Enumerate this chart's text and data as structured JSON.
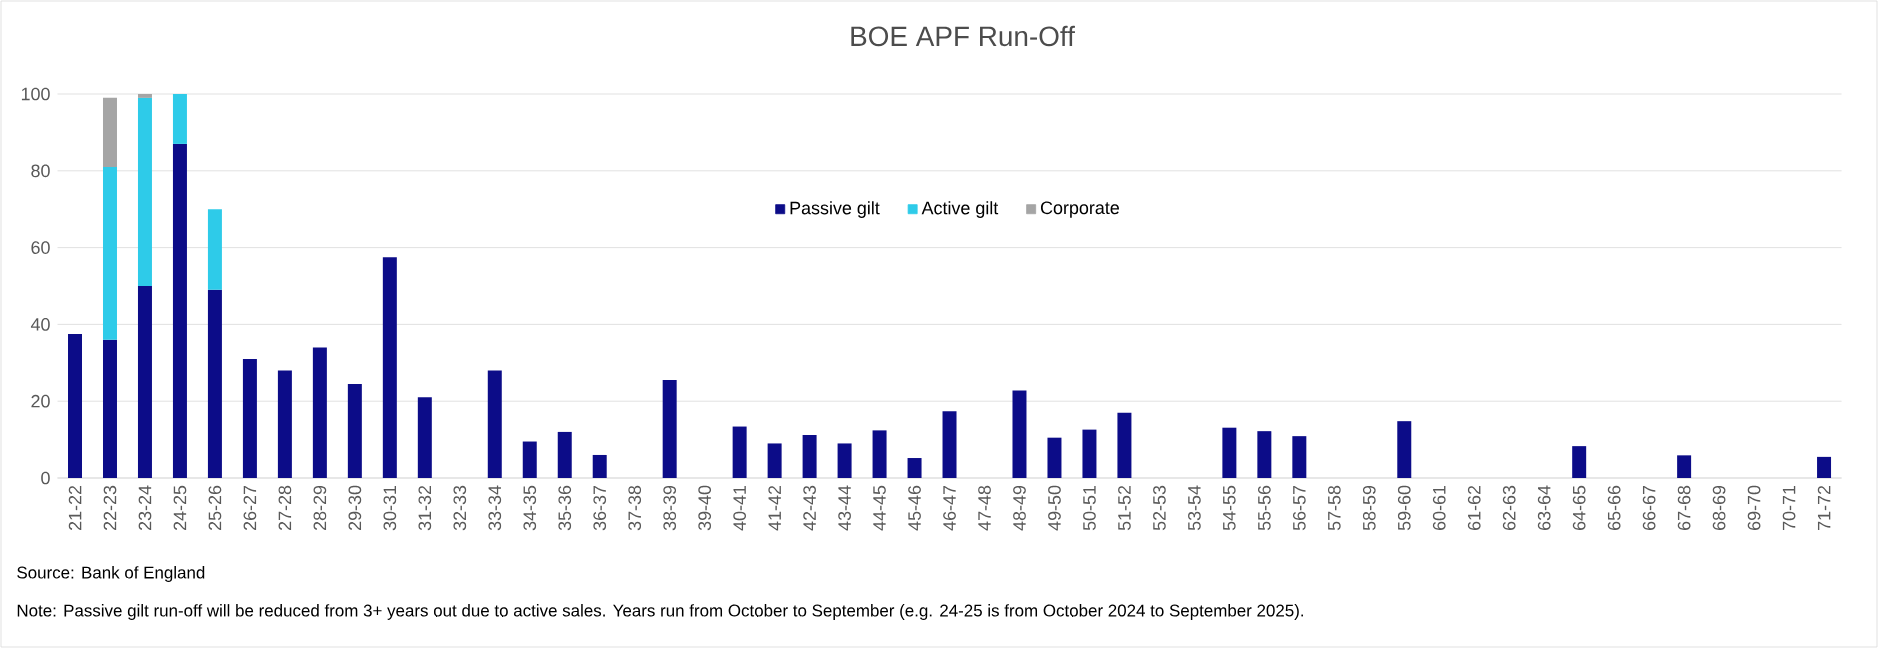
{
  "chart_data": {
    "type": "bar",
    "title": "BOE APF Run-Off",
    "stacked": true,
    "categories": [
      "21-22",
      "22-23",
      "23-24",
      "24-25",
      "25-26",
      "26-27",
      "27-28",
      "28-29",
      "29-30",
      "30-31",
      "31-32",
      "32-33",
      "33-34",
      "34-35",
      "35-36",
      "36-37",
      "37-38",
      "38-39",
      "39-40",
      "40-41",
      "41-42",
      "42-43",
      "43-44",
      "44-45",
      "45-46",
      "46-47",
      "47-48",
      "48-49",
      "49-50",
      "50-51",
      "51-52",
      "52-53",
      "53-54",
      "54-55",
      "55-56",
      "56-57",
      "57-58",
      "58-59",
      "59-60",
      "60-61",
      "61-62",
      "62-63",
      "63-64",
      "64-65",
      "65-66",
      "66-67",
      "67-68",
      "68-69",
      "69-70",
      "70-71",
      "71-72"
    ],
    "series": [
      {
        "name": "Passive gilt",
        "color": "#0c0c88",
        "values": [
          37.5,
          36,
          50,
          87,
          49,
          31,
          28,
          34,
          24.5,
          57.5,
          21,
          null,
          28,
          9.5,
          12,
          6,
          null,
          25.5,
          null,
          13.4,
          9,
          11.2,
          9,
          12.4,
          5.2,
          17.4,
          null,
          22.8,
          10.5,
          12.6,
          17,
          null,
          null,
          13.1,
          12.2,
          10.9,
          null,
          null,
          14.8,
          null,
          null,
          null,
          null,
          8.3,
          null,
          null,
          5.9,
          null,
          null,
          null,
          5.5
        ]
      },
      {
        "name": "Active gilt",
        "color": "#2ecbe9",
        "values": [
          null,
          45,
          49,
          13,
          21,
          null,
          null,
          null,
          null,
          null,
          null,
          null,
          null,
          null,
          null,
          null,
          null,
          null,
          null,
          null,
          null,
          null,
          null,
          null,
          null,
          null,
          null,
          null,
          null,
          null,
          null,
          null,
          null,
          null,
          null,
          null,
          null,
          null,
          null,
          null,
          null,
          null,
          null,
          null,
          null,
          null,
          null,
          null,
          null,
          null,
          null
        ]
      },
      {
        "name": "Corporate",
        "color": "#a5a5a5",
        "values": [
          null,
          18,
          1,
          null,
          null,
          null,
          null,
          null,
          null,
          null,
          null,
          null,
          null,
          null,
          null,
          null,
          null,
          null,
          null,
          null,
          null,
          null,
          null,
          null,
          null,
          null,
          null,
          null,
          null,
          null,
          null,
          null,
          null,
          null,
          null,
          null,
          null,
          null,
          null,
          null,
          null,
          null,
          null,
          null,
          null,
          null,
          null,
          null,
          null,
          null,
          null
        ]
      }
    ],
    "ylim": [
      0,
      100
    ],
    "yticks": [
      0,
      20,
      40,
      60,
      80,
      100
    ],
    "grid": "y",
    "legend": "top",
    "annotations": [
      "Source: Bank of England",
      "Note: Passive gilt run-off will be reduced from 3+ years out due to active sales. Years run from October to September (e.g. 24-25 is from October 2024 to September 2025)."
    ]
  }
}
